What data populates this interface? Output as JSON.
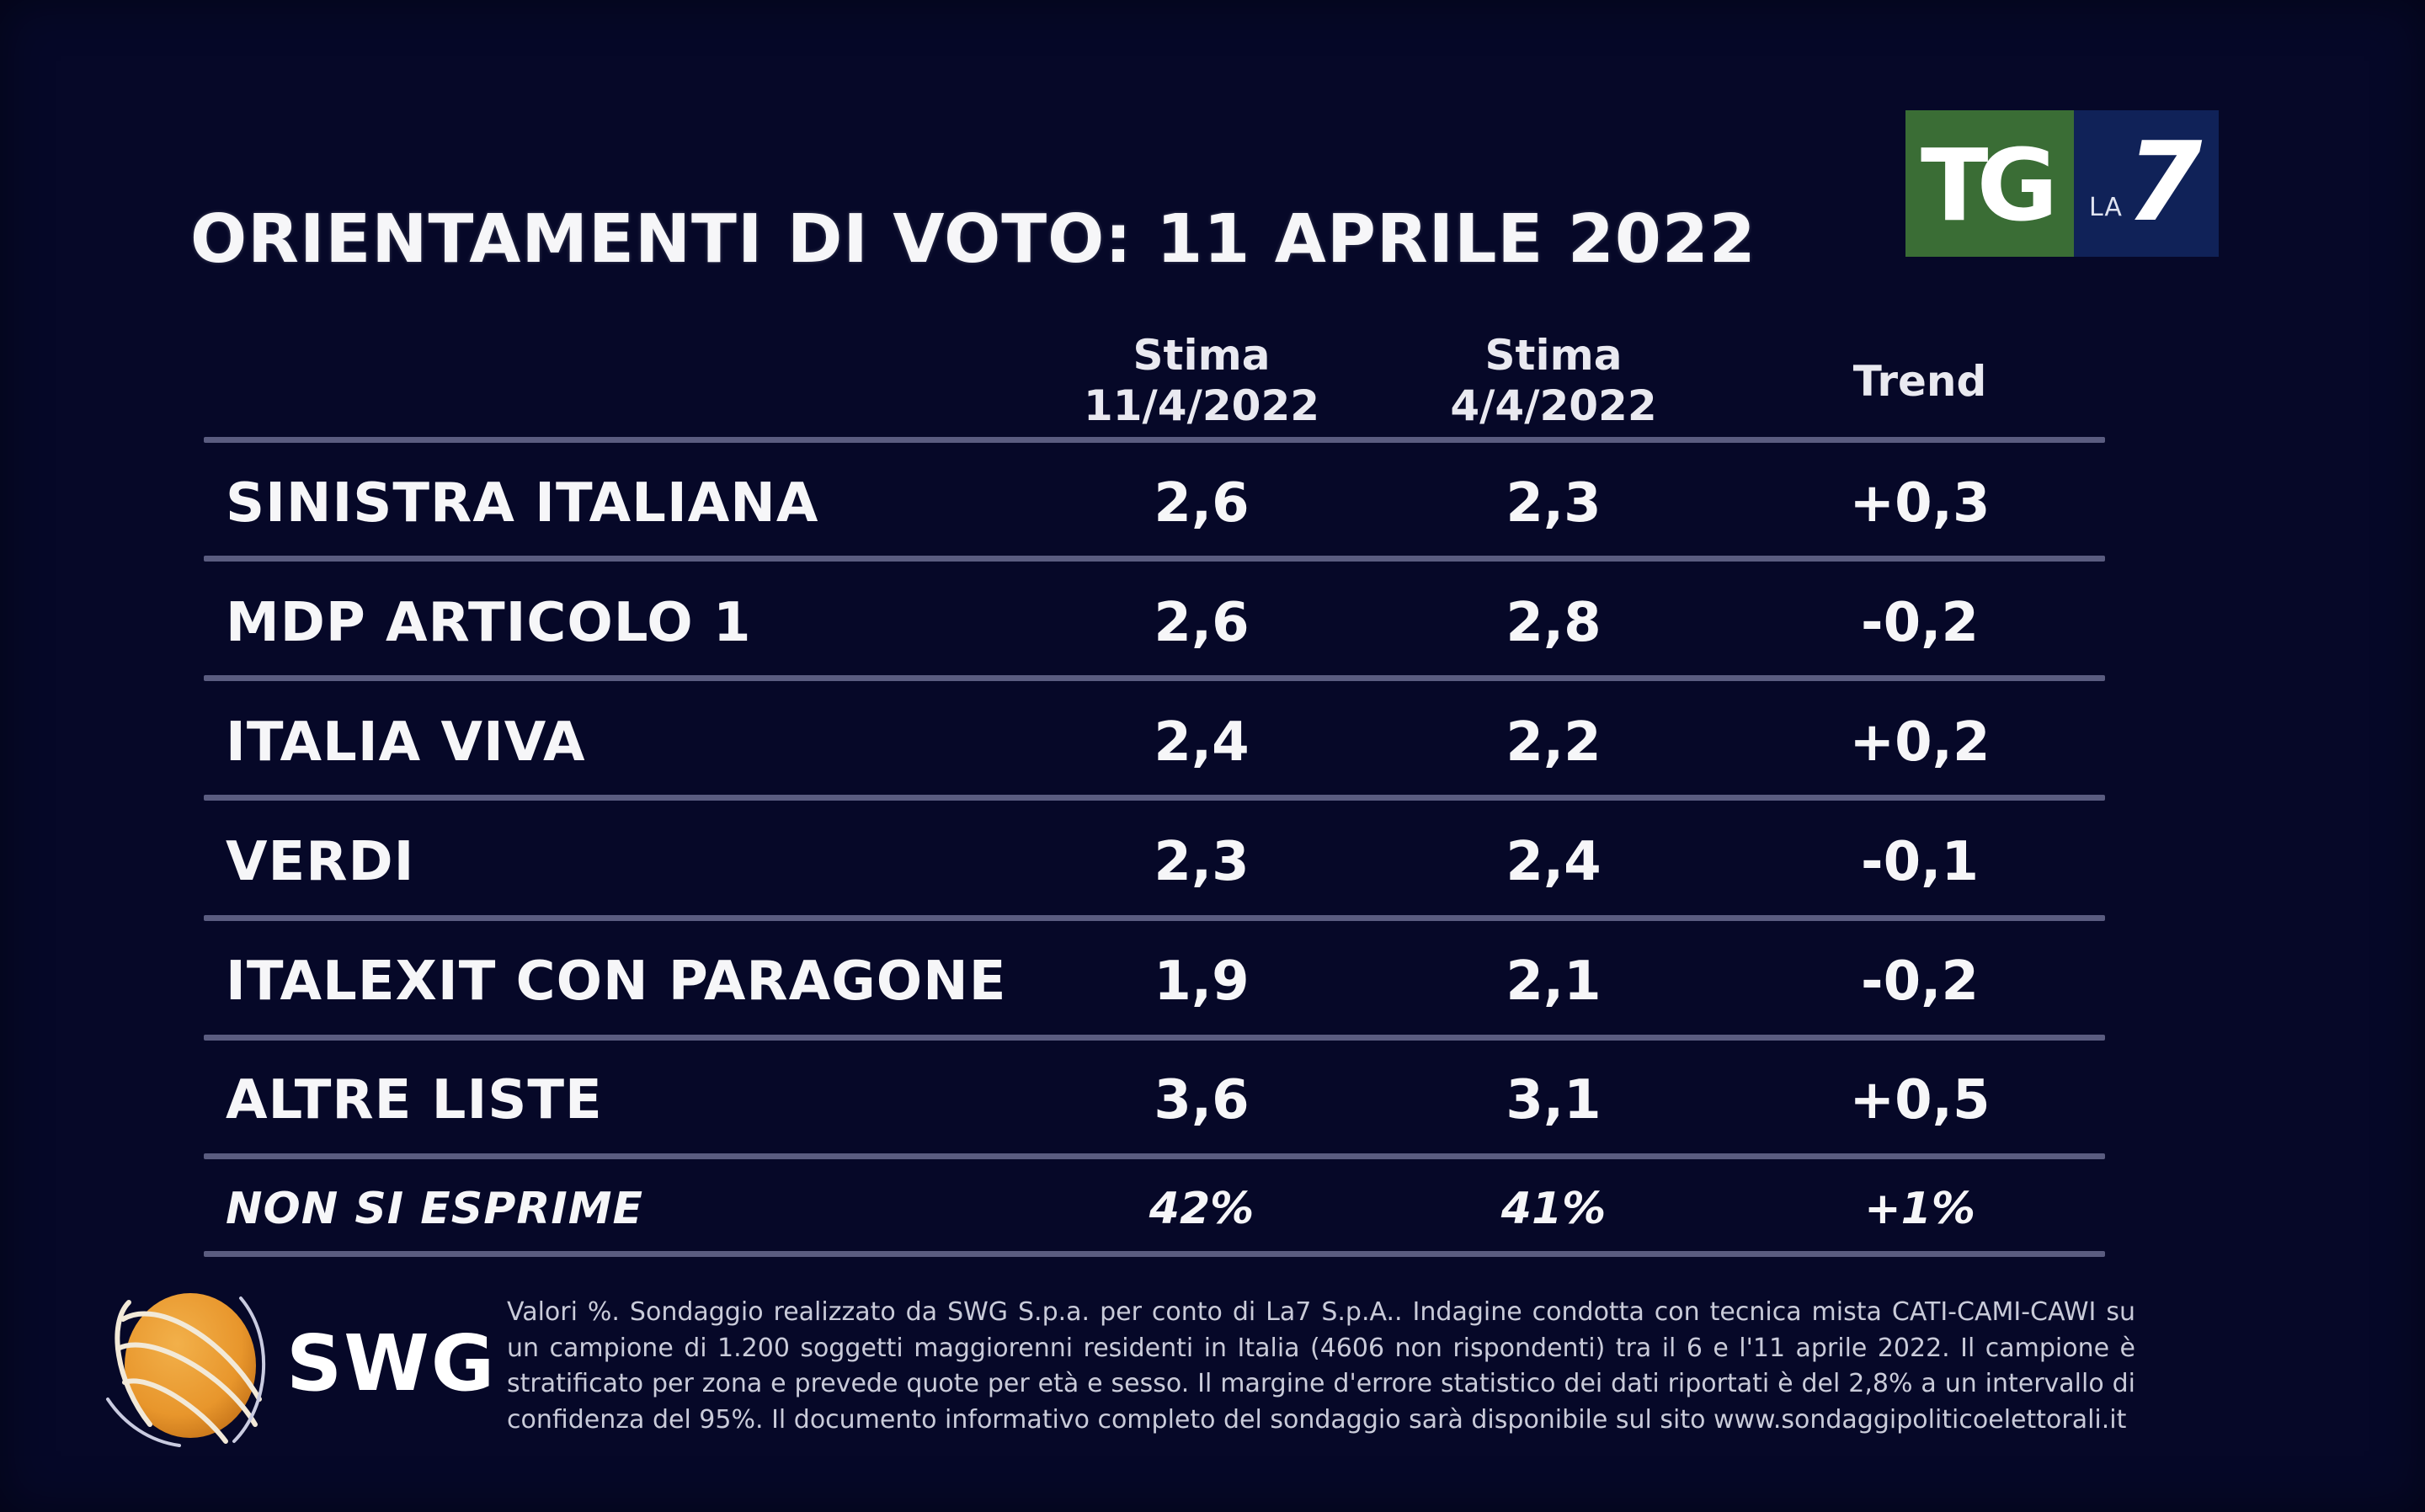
{
  "title": "ORIENTAMENTI DI VOTO: 11 APRILE 2022",
  "broadcaster_logo": {
    "tg": "TG",
    "la": "LA",
    "seven": "7",
    "colors": {
      "green": "#3a6d35",
      "blue": "#102258"
    }
  },
  "table": {
    "headers": [
      {
        "line1": "Stima",
        "line2": "11/4/2022"
      },
      {
        "line1": "Stima",
        "line2": "4/4/2022"
      },
      {
        "line1": "Trend",
        "line2": ""
      }
    ],
    "rows": [
      {
        "party": "SINISTRA ITALIANA",
        "current": "2,6",
        "previous": "2,3",
        "trend": "+0,3"
      },
      {
        "party": "MDP ARTICOLO 1",
        "current": "2,6",
        "previous": "2,8",
        "trend": "-0,2"
      },
      {
        "party": "ITALIA VIVA",
        "current": "2,4",
        "previous": "2,2",
        "trend": "+0,2"
      },
      {
        "party": "VERDI",
        "current": "2,3",
        "previous": "2,4",
        "trend": "-0,1"
      },
      {
        "party": "ITALEXIT CON PARAGONE",
        "current": "1,9",
        "previous": "2,1",
        "trend": "-0,2"
      },
      {
        "party": "ALTRE LISTE",
        "current": "3,6",
        "previous": "3,1",
        "trend": "+0,5"
      }
    ],
    "non_voters": {
      "label": "NON SI ESPRIME",
      "current": "42%",
      "previous": "41%",
      "trend": "+1%"
    }
  },
  "footer": {
    "pollster_logo": "SWG",
    "note": "Valori %. Sondaggio realizzato da SWG S.p.a. per conto di La7 S.p.A.. Indagine condotta con tecnica mista CATI-CAMI-CAWI su un campione di 1.200 soggetti maggiorenni residenti in Italia (4606 non rispondenti) tra il 6 e l'11 aprile 2022. Il campione è stratificato per zona e prevede quote per età e sesso. Il margine d'errore statistico dei dati riportati è del 2,8% a un intervallo di confidenza del 95%. Il documento informativo completo del sondaggio sarà disponibile sul sito www.sondaggipoliticoelettorali.it"
  },
  "colors": {
    "background": "#060828",
    "separator": "#5a5c80",
    "text": "#f6f6f8"
  }
}
